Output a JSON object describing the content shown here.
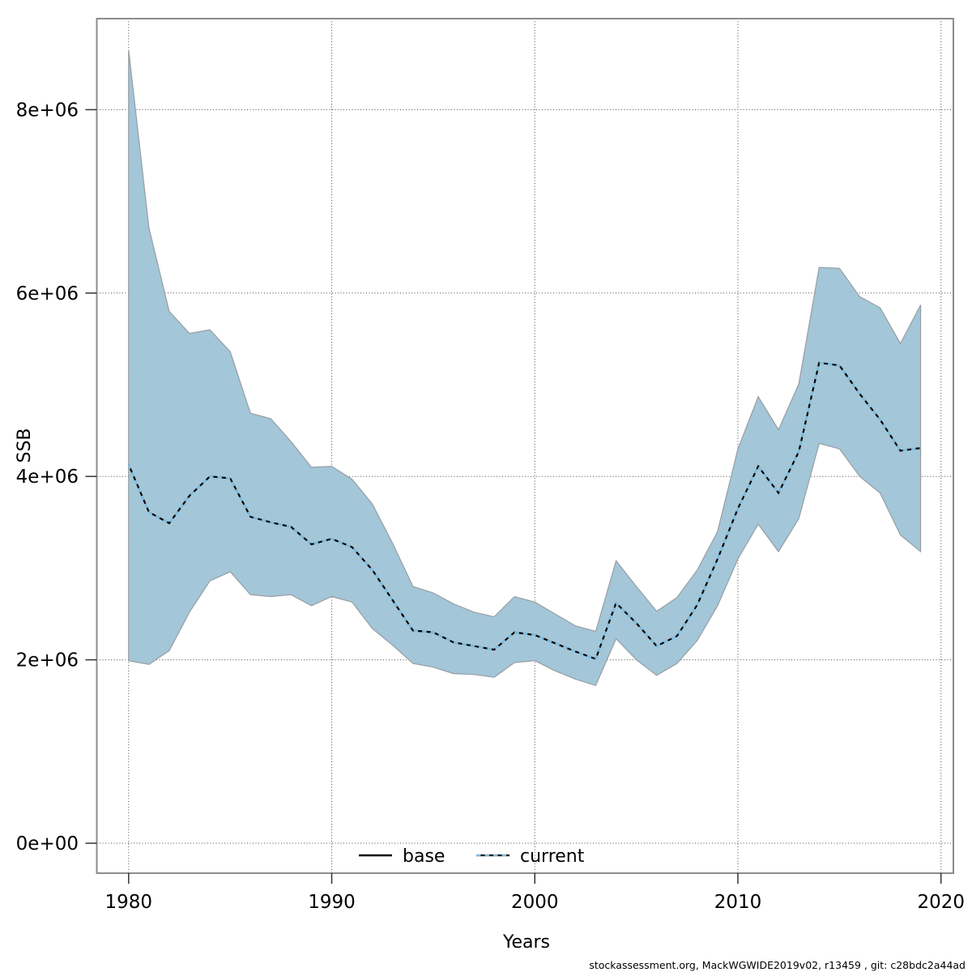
{
  "footer": "stockassessment.org, MackWGWIDE2019v02, r13459 , git: c28bdc2a44ad",
  "colors": {
    "band_fill": "#a3c6d8",
    "band_edge": "#979ea3",
    "base_line": "#000000",
    "current_line": "#7fbcdf",
    "grid": "#4a4a4a",
    "border": "#8c8c8c",
    "tick": "#333333",
    "text": "#000000"
  },
  "chart_data": {
    "type": "line",
    "title": "",
    "xlabel": "Years",
    "ylabel": "SSB",
    "grid": true,
    "legend_position": "bottom-center-inside",
    "xlim": [
      1978.4,
      2020.7
    ],
    "ylim": [
      -320000,
      9000000
    ],
    "x_ticks": [
      1980,
      1990,
      2000,
      2010,
      2020
    ],
    "y_ticks": [
      {
        "value": 0,
        "label": "0e+00"
      },
      {
        "value": 2000000,
        "label": "2e+06"
      },
      {
        "value": 4000000,
        "label": "4e+06"
      },
      {
        "value": 6000000,
        "label": "6e+06"
      },
      {
        "value": 8000000,
        "label": "8e+06"
      }
    ],
    "legend": [
      {
        "label": "base",
        "style": "solid",
        "color": "#000000"
      },
      {
        "label": "current",
        "style": "dashed",
        "color": "#7fbcdf"
      }
    ],
    "years": [
      1980,
      1981,
      1982,
      1983,
      1984,
      1985,
      1986,
      1987,
      1988,
      1989,
      1990,
      1991,
      1992,
      1993,
      1994,
      1995,
      1996,
      1997,
      1998,
      1999,
      2000,
      2001,
      2002,
      2003,
      2004,
      2005,
      2006,
      2007,
      2008,
      2009,
      2010,
      2011,
      2012,
      2013,
      2014,
      2015,
      2016,
      2017,
      2018,
      2019
    ],
    "series": [
      {
        "name": "base",
        "values": [
          4130000,
          3610000,
          3490000,
          3790000,
          4000000,
          3980000,
          3560000,
          3500000,
          3450000,
          3260000,
          3320000,
          3230000,
          2980000,
          2650000,
          2320000,
          2300000,
          2190000,
          2150000,
          2110000,
          2300000,
          2270000,
          2180000,
          2090000,
          2010000,
          2620000,
          2400000,
          2150000,
          2260000,
          2600000,
          3100000,
          3650000,
          4110000,
          3820000,
          4270000,
          5240000,
          5210000,
          4900000,
          4620000,
          4280000,
          4310000
        ]
      },
      {
        "name": "current",
        "values": [
          4130000,
          3610000,
          3490000,
          3790000,
          4000000,
          3980000,
          3560000,
          3500000,
          3450000,
          3260000,
          3320000,
          3230000,
          2980000,
          2650000,
          2320000,
          2300000,
          2190000,
          2150000,
          2110000,
          2300000,
          2270000,
          2180000,
          2090000,
          2010000,
          2620000,
          2400000,
          2150000,
          2260000,
          2600000,
          3100000,
          3650000,
          4110000,
          3820000,
          4270000,
          5240000,
          5210000,
          4900000,
          4620000,
          4280000,
          4310000
        ]
      }
    ],
    "band": {
      "name": "confidence-band",
      "low": [
        1990000,
        1950000,
        2100000,
        2520000,
        2860000,
        2960000,
        2710000,
        2690000,
        2710000,
        2590000,
        2690000,
        2630000,
        2340000,
        2160000,
        1960000,
        1920000,
        1850000,
        1840000,
        1810000,
        1970000,
        1990000,
        1880000,
        1790000,
        1720000,
        2230000,
        2000000,
        1830000,
        1960000,
        2210000,
        2590000,
        3100000,
        3480000,
        3180000,
        3540000,
        4360000,
        4300000,
        4000000,
        3820000,
        3360000,
        3180000
      ],
      "high": [
        8650000,
        6710000,
        5800000,
        5560000,
        5600000,
        5360000,
        4690000,
        4630000,
        4380000,
        4100000,
        4110000,
        3970000,
        3700000,
        3270000,
        2800000,
        2730000,
        2610000,
        2520000,
        2470000,
        2690000,
        2630000,
        2500000,
        2370000,
        2310000,
        3080000,
        2800000,
        2530000,
        2680000,
        2980000,
        3400000,
        4300000,
        4870000,
        4510000,
        5010000,
        6280000,
        6270000,
        5960000,
        5840000,
        5450000,
        5870000
      ]
    }
  }
}
